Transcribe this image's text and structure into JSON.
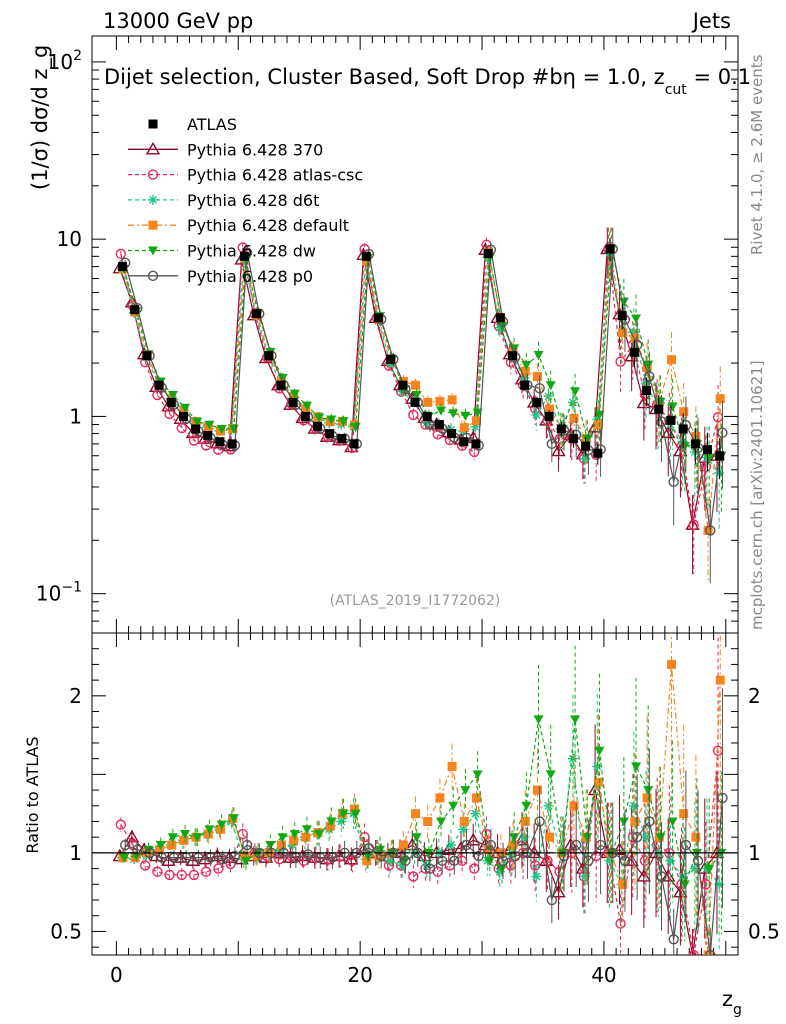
{
  "header": {
    "left": "13000 GeV pp",
    "right": "Jets",
    "selection": "Dijet selection, Cluster Based, Soft Drop #b",
    "cut_eta": "η = 1.0, z",
    "cut_sub": "cut",
    "cut_val": " = 0.1"
  },
  "side": {
    "rivet": "Rivet 4.1.0, ≥ 2.6M events",
    "site": "mcplots.cern.ch [arXiv:2401.10621]"
  },
  "watermark": "(ATLAS_2019_I1772062)",
  "chart_data": {
    "type": "scatter",
    "title": "Dijet selection, Cluster Based, Soft Drop #b",
    "xlabel": "z_g",
    "ylabel": "(1/σ) dσ/d z_g",
    "ratio_ylabel": "Ratio to ATLAS",
    "xlim": [
      -2,
      51
    ],
    "ylim": [
      0.06,
      140
    ],
    "ylog": true,
    "ratio_ylim": [
      0.35,
      2.4
    ],
    "ratio_ticks": [
      0.5,
      1,
      2
    ],
    "x_ticks": [
      0,
      20,
      40
    ],
    "y_ticks": [
      {
        "v": 0.1,
        "base": "10",
        "exp": "−1"
      },
      {
        "v": 1,
        "base": "1",
        "exp": ""
      },
      {
        "v": 10,
        "base": "10",
        "exp": ""
      },
      {
        "v": 100,
        "base": "10",
        "exp": "2"
      }
    ],
    "x": [
      0.5,
      1.5,
      2.5,
      3.5,
      4.5,
      5.5,
      6.5,
      7.5,
      8.5,
      9.5,
      10.5,
      11.5,
      12.5,
      13.5,
      14.5,
      15.5,
      16.5,
      17.5,
      18.5,
      19.5,
      20.5,
      21.5,
      22.5,
      23.5,
      24.5,
      25.5,
      26.5,
      27.5,
      28.5,
      29.5,
      30.5,
      31.5,
      32.5,
      33.5,
      34.5,
      35.5,
      36.5,
      37.5,
      38.5,
      39.5,
      40.5,
      41.5,
      42.5,
      43.5,
      44.5,
      45.5,
      46.5,
      47.5,
      48.5,
      49.5
    ],
    "reference": {
      "name": "ATLAS",
      "values": [
        7.0,
        4.0,
        2.2,
        1.5,
        1.2,
        1.0,
        0.85,
        0.78,
        0.72,
        0.7,
        8.0,
        3.8,
        2.2,
        1.5,
        1.2,
        1.0,
        0.88,
        0.8,
        0.75,
        0.7,
        8.0,
        3.6,
        2.1,
        1.5,
        1.2,
        1.0,
        0.9,
        0.8,
        0.72,
        0.7,
        8.3,
        3.6,
        2.2,
        1.5,
        1.2,
        1.0,
        0.85,
        0.75,
        0.68,
        0.62,
        8.8,
        3.7,
        2.3,
        1.4,
        1.1,
        0.95,
        0.85,
        0.7,
        0.65,
        0.6
      ]
    },
    "series": [
      {
        "name": "Pythia 6.428 370",
        "color": "#8b0a23",
        "marker": "triangle",
        "dash": "",
        "ratio": [
          0.98,
          1.1,
          1.02,
          0.98,
          0.95,
          0.97,
          0.95,
          0.96,
          0.98,
          0.97,
          0.96,
          0.98,
          0.97,
          1.0,
          0.97,
          0.98,
          0.97,
          0.96,
          0.98,
          0.96,
          1.02,
          1.0,
          0.98,
          1.0,
          1.05,
          0.98,
          1.0,
          1.02,
          1.03,
          1.08,
          1.05,
          1.0,
          1.02,
          1.08,
          1.0,
          0.95,
          0.75,
          1.05,
          0.9,
          1.4,
          1.0,
          1.02,
          0.95,
          0.85,
          1.0,
          0.85,
          0.75,
          0.35,
          0.9,
          1.0
        ]
      },
      {
        "name": "Pythia 6.428 atlas-csc",
        "color": "#e8295c",
        "marker": "circle",
        "dash": "4,3",
        "ratio": [
          1.18,
          1.05,
          0.92,
          0.88,
          0.86,
          0.86,
          0.86,
          0.88,
          0.9,
          0.93,
          1.12,
          1.0,
          0.98,
          0.96,
          0.98,
          0.95,
          0.97,
          0.96,
          0.98,
          0.95,
          1.1,
          1.0,
          0.92,
          0.92,
          0.85,
          0.9,
          0.88,
          0.92,
          0.95,
          0.9,
          1.12,
          0.9,
          0.92,
          1.0,
          0.92,
          0.95,
          0.88,
          1.0,
          0.85,
          0.98,
          1.0,
          0.55,
          1.1,
          0.95,
          1.05,
          1.0,
          0.8,
          0.35,
          0.8,
          1.65
        ]
      },
      {
        "name": "Pythia 6.428 d6t",
        "color": "#1ac98a",
        "marker": "star",
        "dash": "4,3",
        "ratio": [
          0.97,
          0.96,
          0.98,
          1.02,
          1.05,
          1.08,
          1.1,
          1.12,
          1.15,
          1.2,
          0.96,
          0.98,
          1.0,
          1.02,
          1.05,
          1.1,
          1.12,
          1.15,
          1.2,
          1.25,
          0.96,
          1.0,
          0.95,
          0.92,
          1.0,
          0.92,
          1.0,
          1.05,
          1.15,
          1.25,
          0.95,
          0.88,
          1.0,
          1.1,
          0.85,
          1.3,
          1.0,
          1.6,
          0.85,
          1.55,
          0.95,
          0.8,
          1.3,
          1.1,
          1.0,
          0.95,
          0.85,
          0.9,
          0.9,
          0.8
        ]
      },
      {
        "name": "Pythia 6.428 default",
        "color": "#f7841e",
        "marker": "square",
        "dash": "6,3,2,3",
        "ratio": [
          0.97,
          0.97,
          1.0,
          1.02,
          1.05,
          1.08,
          1.1,
          1.12,
          1.15,
          1.22,
          0.98,
          0.98,
          1.0,
          1.05,
          1.08,
          1.1,
          1.13,
          1.17,
          1.25,
          1.28,
          0.95,
          0.98,
          1.0,
          1.05,
          1.25,
          1.2,
          1.35,
          1.55,
          1.2,
          1.35,
          1.02,
          1.0,
          1.05,
          1.2,
          1.4,
          1.1,
          1.0,
          1.3,
          1.1,
          1.45,
          1.0,
          0.8,
          1.2,
          1.35,
          1.1,
          2.2,
          1.25,
          1.1,
          0.35,
          2.1
        ]
      },
      {
        "name": "Pythia 6.428 dw",
        "color": "#11a911",
        "marker": "triangle-down",
        "dash": "4,3",
        "ratio": [
          0.97,
          0.98,
          1.02,
          1.05,
          1.1,
          1.12,
          1.1,
          1.15,
          1.18,
          1.22,
          0.95,
          1.0,
          1.05,
          1.1,
          1.12,
          1.15,
          1.12,
          1.2,
          1.25,
          1.25,
          0.98,
          1.02,
          1.0,
          0.95,
          1.1,
          1.0,
          1.2,
          1.3,
          1.4,
          1.5,
          0.95,
          0.9,
          1.1,
          1.3,
          1.85,
          1.5,
          1.0,
          1.85,
          1.1,
          1.65,
          1.0,
          1.2,
          1.55,
          1.4,
          1.1,
          1.2,
          0.8,
          1.0,
          0.9,
          1.0
        ]
      },
      {
        "name": "Pythia 6.428 p0",
        "color": "#555555",
        "marker": "open-circle",
        "dash": "",
        "ratio": [
          1.05,
          1.02,
          1.0,
          0.97,
          0.97,
          0.97,
          0.97,
          0.97,
          0.96,
          0.98,
          1.05,
          1.0,
          1.0,
          1.0,
          0.97,
          0.99,
          0.97,
          0.97,
          1.0,
          1.0,
          1.03,
          0.98,
          1.0,
          0.95,
          1.0,
          0.9,
          0.95,
          0.95,
          1.05,
          0.98,
          1.05,
          0.95,
          0.98,
          1.0,
          1.2,
          0.7,
          0.98,
          1.05,
          0.95,
          1.05,
          1.0,
          0.95,
          1.1,
          1.2,
          0.85,
          0.45,
          1.05,
          0.95,
          0.35,
          1.35
        ]
      }
    ]
  }
}
